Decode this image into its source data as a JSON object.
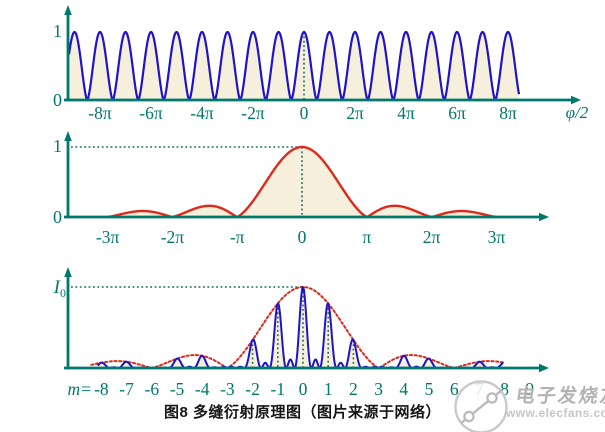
{
  "caption": "图8 多缝衍射原理图（图片来源于网络）",
  "watermark": {
    "brand": "电子发烧友",
    "url": "www.elecfans.com",
    "logo": "elecfans-circuit-logo"
  },
  "colors": {
    "axis": "#00786c",
    "tick_text": "#00786c",
    "curve_blue": "#2013c8",
    "curve_red": "#dd2a1c",
    "fill_cream": "#f6efdc",
    "guide_dotted": "#0f6e58",
    "caption_text": "#161616",
    "watermark_gray": "#b5b5b5"
  },
  "chart_data": [
    {
      "type": "line",
      "id": "interference-term",
      "xlabel": "φ/2",
      "ytick_labels": [
        "1",
        "0"
      ],
      "ylim": [
        0,
        1
      ],
      "xtick_labels": [
        "-8π",
        "-6π",
        "-4π",
        "-2π",
        "0",
        "2π",
        "4π",
        "6π",
        "8π"
      ],
      "xtick_positions_pi": [
        -8,
        -6,
        -4,
        -2,
        0,
        2,
        4,
        6,
        8
      ],
      "series": [
        {
          "name": "multi-beam interference pattern",
          "color_key": "curve_blue",
          "fill_key": "fill_cream",
          "function": "|cos(pi*t)|^1.6 (cos-squared-like peaks)",
          "t_range_pi": [
            -9.22,
            8.45
          ],
          "maxima": "value 1 at every integer multiple of pi",
          "zeros": "at every half-integer multiple of pi"
        }
      ],
      "guides": [
        {
          "kind": "vertical-dotted",
          "at_pi": 0
        }
      ]
    },
    {
      "type": "line",
      "id": "diffraction-envelope",
      "ytick_labels": [
        "1",
        "0"
      ],
      "ylim": [
        0,
        1
      ],
      "xtick_labels": [
        "-3π",
        "-2π",
        "-π",
        "0",
        "π",
        "2π",
        "3π"
      ],
      "xtick_positions_pi": [
        -3,
        -2,
        -1,
        0,
        1,
        2,
        3
      ],
      "series": [
        {
          "name": "single-slit diffraction envelope",
          "color_key": "curve_red",
          "fill_key": "fill_cream",
          "function": "|sinc(pi*u)|^1.2 (sinc-squared-like)",
          "t_range_pi": [
            -3,
            3
          ],
          "central_maximum": {
            "at_pi": 0,
            "value": 1
          },
          "zeros_at_pi": [
            -3,
            -2,
            -1,
            1,
            2,
            3
          ],
          "side_lobe_maxima": [
            {
              "at_pi": -2.46,
              "value": 0.09
            },
            {
              "at_pi": -1.43,
              "value": 0.16
            },
            {
              "at_pi": 1.43,
              "value": 0.16
            },
            {
              "at_pi": 2.46,
              "value": 0.09
            }
          ]
        }
      ],
      "guides": [
        {
          "kind": "horizontal-dotted",
          "at_y": 1
        },
        {
          "kind": "vertical-dotted",
          "at_pi": 0
        }
      ]
    },
    {
      "type": "line",
      "id": "multi-slit-diffraction-result",
      "ylabel": "I0",
      "ylim": [
        0,
        1
      ],
      "xtick_prefix": "m=",
      "xtick_labels": [
        "-8",
        "-7",
        "-6",
        "-5",
        "-4",
        "-3",
        "-2",
        "-1",
        "0",
        "1",
        "2",
        "3",
        "4",
        "5",
        "6",
        "7",
        "8",
        "9"
      ],
      "xtick_positions_m": [
        -8,
        -7,
        -6,
        -5,
        -4,
        -3,
        -2,
        -1,
        0,
        1,
        2,
        3,
        4,
        5,
        6,
        7,
        8,
        9
      ],
      "series": [
        {
          "name": "resultant multi-slit intensity",
          "color_key": "curve_blue",
          "fill_key": "fill_cream",
          "function": "|sinc(pi*m/3)|^1.2 * (sin(3*pi*m)/(3*sin(pi*m)))^2",
          "m_range": [
            -8.15,
            7.95
          ],
          "principal_maxima": [
            {
              "m": -8,
              "value": 0.07
            },
            {
              "m": -7,
              "value": 0.08
            },
            {
              "m": -5,
              "value": 0.12
            },
            {
              "m": -4,
              "value": 0.15
            },
            {
              "m": -2,
              "value": 0.35
            },
            {
              "m": -1,
              "value": 0.8
            },
            {
              "m": 0,
              "value": 1
            },
            {
              "m": 1,
              "value": 0.8
            },
            {
              "m": 2,
              "value": 0.35
            },
            {
              "m": 4,
              "value": 0.15
            },
            {
              "m": 5,
              "value": 0.12
            },
            {
              "m": 7,
              "value": 0.08
            },
            {
              "m": 8,
              "value": 0.07
            }
          ],
          "missing_orders": [
            -6,
            -3,
            3,
            6
          ]
        },
        {
          "name": "diffraction envelope",
          "color_key": "curve_red",
          "style": "dotted",
          "function": "|sinc(pi*m/3)|^1.2",
          "m_range": [
            -8.4,
            8.05
          ],
          "zeros_at_m": [
            -6,
            -3,
            3,
            6
          ]
        }
      ],
      "guides": [
        {
          "kind": "horizontal-dotted",
          "at_y": 1
        },
        {
          "kind": "vertical-dotted",
          "at_m": -2
        },
        {
          "kind": "vertical-dotted",
          "at_m": -1
        },
        {
          "kind": "vertical-dotted",
          "at_m": 0
        },
        {
          "kind": "vertical-dotted",
          "at_m": 1
        },
        {
          "kind": "vertical-dotted",
          "at_m": 2
        }
      ]
    }
  ]
}
